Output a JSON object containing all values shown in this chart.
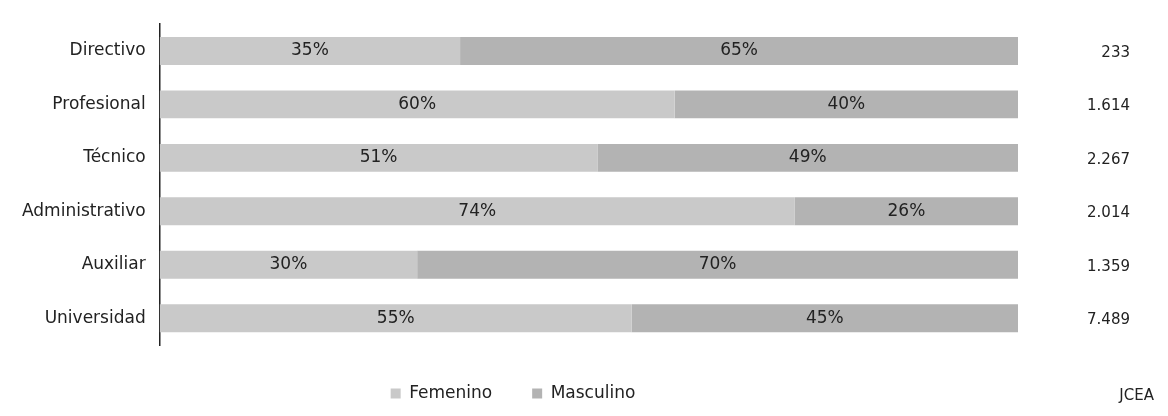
{
  "chart_data": {
    "type": "bar",
    "orientation": "horizontal",
    "stacked": true,
    "categories": [
      "Directivo",
      "Profesional",
      "Técnico",
      "Administrativo",
      "Auxiliar",
      "Universidad"
    ],
    "series": [
      {
        "name": "Femenino",
        "color": "#c9c9c9",
        "values": [
          35,
          60,
          51,
          74,
          30,
          55
        ],
        "value_labels": [
          "35%",
          "60%",
          "51%",
          "74%",
          "30%",
          "55%"
        ]
      },
      {
        "name": "Masculino",
        "color": "#b3b3b3",
        "values": [
          65,
          40,
          49,
          26,
          70,
          45
        ],
        "value_labels": [
          "65%",
          "40%",
          "49%",
          "26%",
          "70%",
          "45%"
        ]
      }
    ],
    "legend": "bottom",
    "tick_labels": "y",
    "annotations": [
      "233",
      "1.614",
      "2.267",
      "2.014",
      "1.359",
      "7.489",
      "JCEA"
    ]
  }
}
